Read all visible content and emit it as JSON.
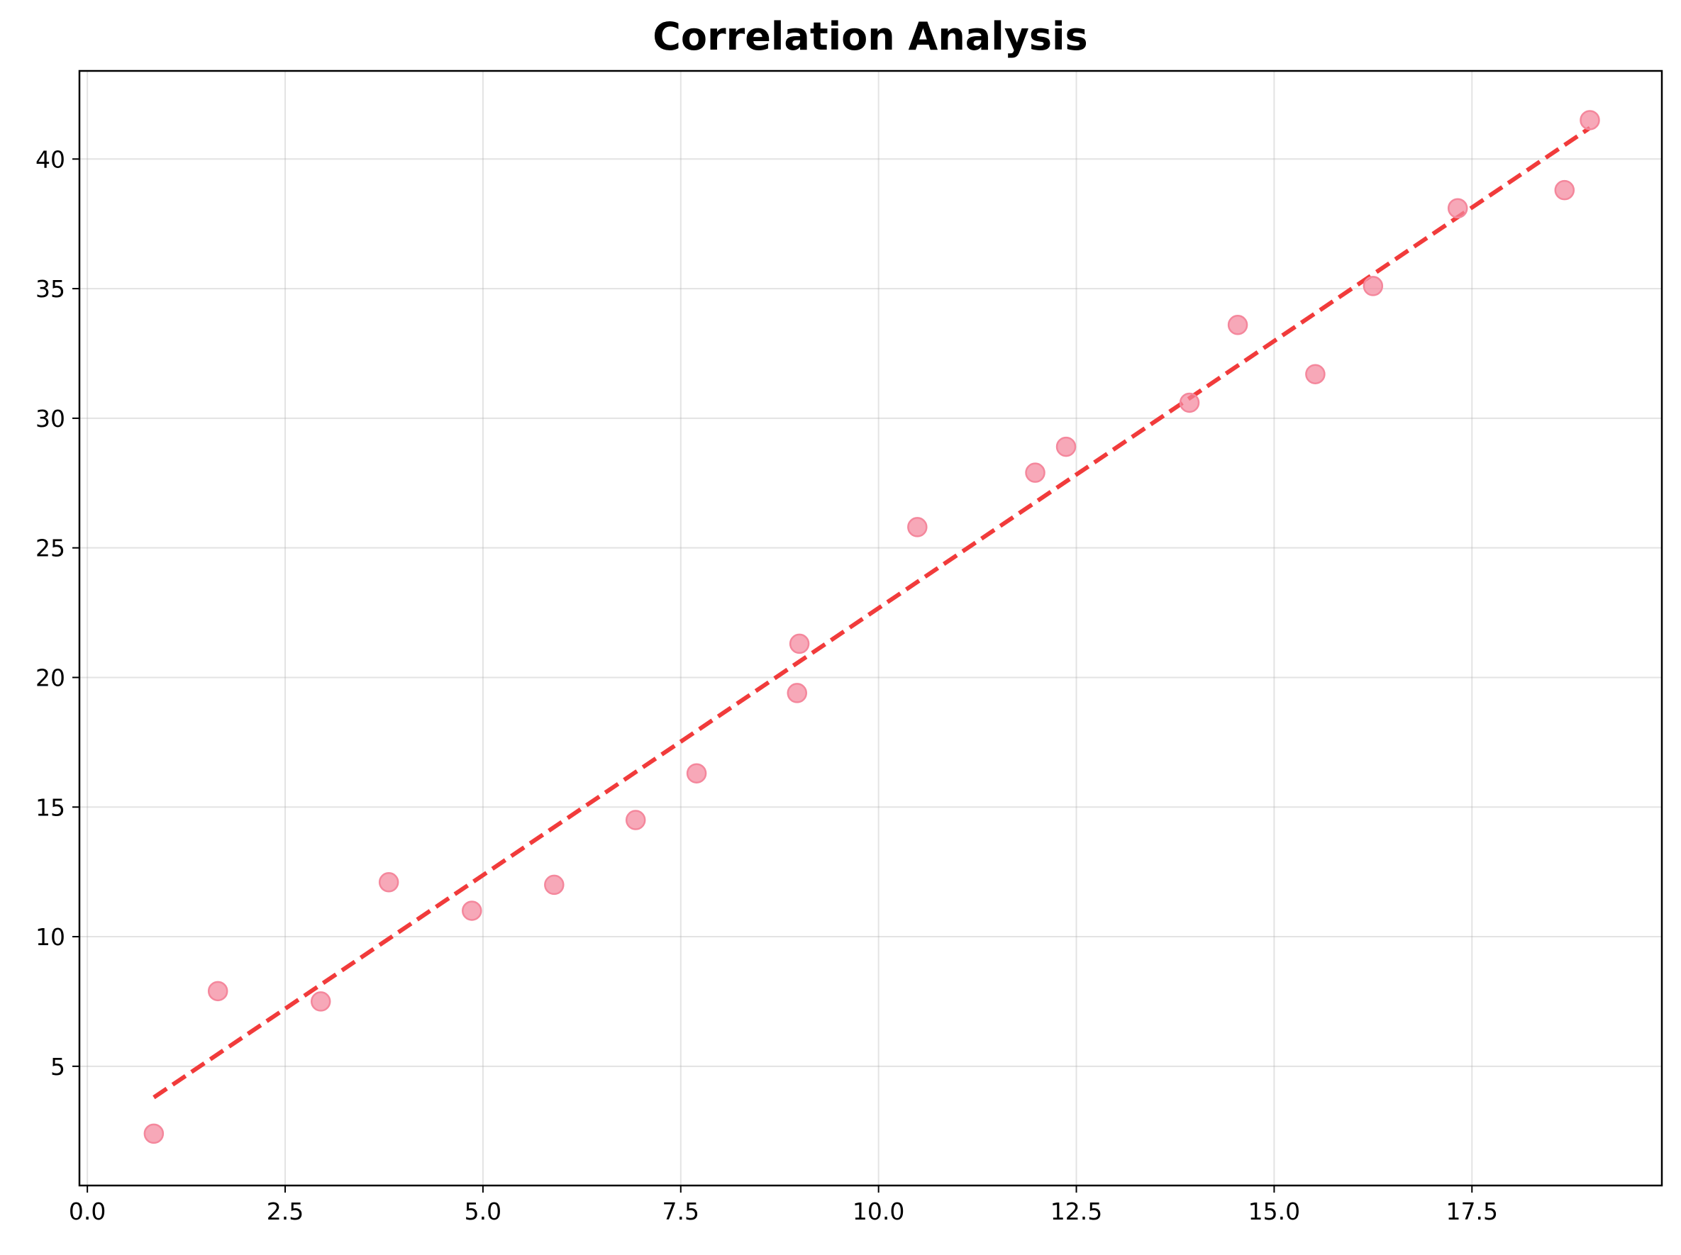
{
  "chart_data": {
    "type": "scatter",
    "title": "Correlation Analysis",
    "xlabel": "",
    "ylabel": "",
    "xlim": [
      -0.1,
      19.9
    ],
    "ylim": [
      0.4,
      43.4
    ],
    "x_ticks": [
      0.0,
      2.5,
      5.0,
      7.5,
      10.0,
      12.5,
      15.0,
      17.5
    ],
    "x_tick_labels": [
      "0.0",
      "2.5",
      "5.0",
      "7.5",
      "10.0",
      "12.5",
      "15.0",
      "17.5"
    ],
    "y_ticks": [
      5,
      10,
      15,
      20,
      25,
      30,
      35,
      40
    ],
    "y_tick_labels": [
      "5",
      "10",
      "15",
      "20",
      "25",
      "30",
      "35",
      "40"
    ],
    "grid": true,
    "series": [
      {
        "kind": "scatter",
        "color": "#f4879c",
        "points": [
          {
            "x": 0.84,
            "y": 2.4
          },
          {
            "x": 1.65,
            "y": 7.9
          },
          {
            "x": 2.95,
            "y": 7.5
          },
          {
            "x": 3.81,
            "y": 12.1
          },
          {
            "x": 4.86,
            "y": 11.0
          },
          {
            "x": 5.9,
            "y": 12.0
          },
          {
            "x": 6.93,
            "y": 14.5
          },
          {
            "x": 7.7,
            "y": 16.3
          },
          {
            "x": 8.97,
            "y": 19.4
          },
          {
            "x": 9.0,
            "y": 21.3
          },
          {
            "x": 10.49,
            "y": 25.8
          },
          {
            "x": 11.98,
            "y": 27.9
          },
          {
            "x": 12.37,
            "y": 28.9
          },
          {
            "x": 13.93,
            "y": 30.6
          },
          {
            "x": 14.54,
            "y": 33.6
          },
          {
            "x": 15.52,
            "y": 31.7
          },
          {
            "x": 16.25,
            "y": 35.1
          },
          {
            "x": 17.32,
            "y": 38.1
          },
          {
            "x": 18.67,
            "y": 38.8
          },
          {
            "x": 18.99,
            "y": 41.5
          }
        ]
      },
      {
        "kind": "trendline",
        "style": "dashed",
        "color": "#f03030",
        "x": [
          0.84,
          18.99
        ],
        "y": [
          3.8,
          41.2
        ]
      }
    ]
  }
}
